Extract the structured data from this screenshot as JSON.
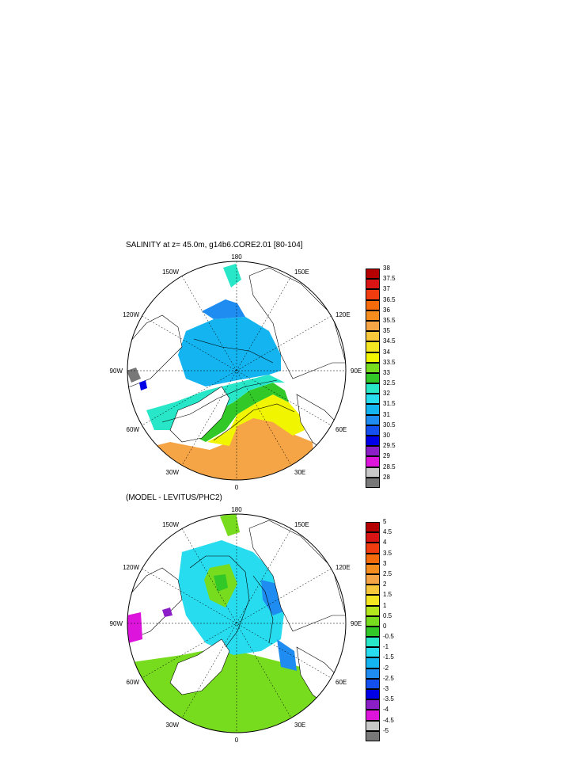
{
  "panels": [
    {
      "id": "salinity",
      "title": "SALINITY at z=  45.0m, g14b6.CORE2.01 [80-104]",
      "colorbar": {
        "labels": [
          "38",
          "37.5",
          "37",
          "36.5",
          "36",
          "35.5",
          "35",
          "34.5",
          "34",
          "33.5",
          "33",
          "32.5",
          "32",
          "31.5",
          "31",
          "30.5",
          "30",
          "29.5",
          "29",
          "28.5",
          "28"
        ],
        "colors": [
          "#b40000",
          "#d81414",
          "#f03c0f",
          "#f56a0a",
          "#f58c1e",
          "#f5a546",
          "#f8c83c",
          "#f5e622",
          "#f2f500",
          "#78dc1e",
          "#32c828",
          "#28e6c8",
          "#28dcf0",
          "#14b4f0",
          "#1e8cf0",
          "#1450f0",
          "#0000e6",
          "#8c1ec8",
          "#dc14dc",
          "#c8c8c8",
          "#787878"
        ]
      },
      "lon_labels": [
        "180",
        "150E",
        "120E",
        "90E",
        "60E",
        "30E",
        "0",
        "30W",
        "60W",
        "90W",
        "120W",
        "150W"
      ]
    },
    {
      "id": "difference",
      "title": "(MODEL - LEVITUS/PHC2)",
      "colorbar": {
        "labels": [
          "5",
          "4.5",
          "4",
          "3.5",
          "3",
          "2.5",
          "2",
          "1.5",
          "1",
          "0.5",
          "0",
          "-0.5",
          "-1",
          "-1.5",
          "-2",
          "-2.5",
          "-3",
          "-3.5",
          "-4",
          "-4.5",
          "-5"
        ],
        "colors": [
          "#b40000",
          "#d81414",
          "#f03c0f",
          "#f56a0a",
          "#f58c1e",
          "#f5a546",
          "#f8c83c",
          "#f5e622",
          "#b4e61e",
          "#78dc1e",
          "#32c828",
          "#28e6c8",
          "#28dcf0",
          "#14b4f0",
          "#1e8cf0",
          "#1450f0",
          "#0000e6",
          "#8c1ec8",
          "#dc14dc",
          "#c8c8c8",
          "#787878"
        ]
      },
      "lon_labels": [
        "180",
        "150E",
        "120E",
        "90E",
        "60E",
        "30E",
        "0",
        "30W",
        "60W",
        "90W",
        "120W",
        "150W"
      ]
    }
  ]
}
